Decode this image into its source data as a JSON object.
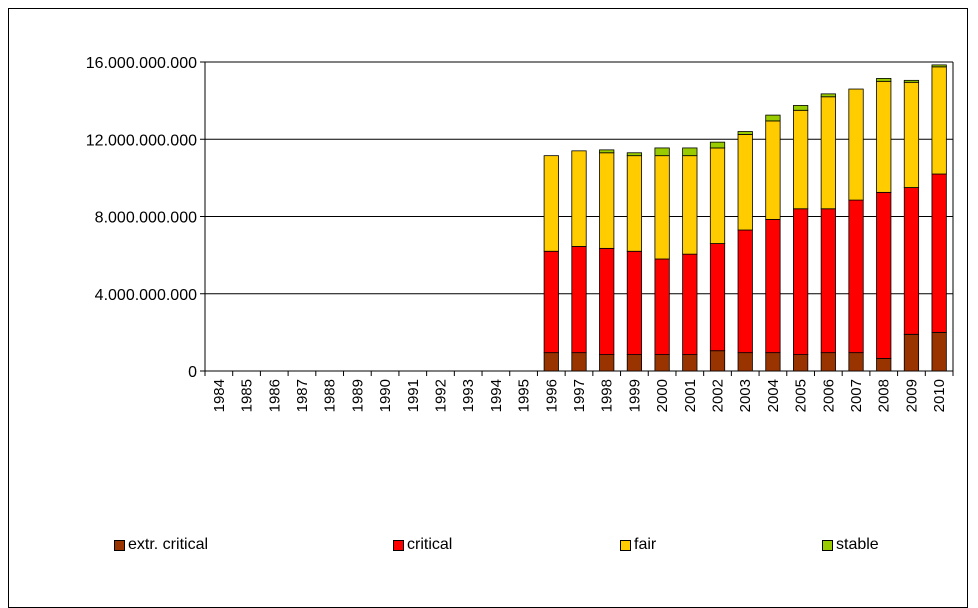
{
  "chart_data": {
    "type": "bar",
    "stacked": true,
    "categories": [
      "1984",
      "1985",
      "1986",
      "1987",
      "1988",
      "1989",
      "1990",
      "1991",
      "1992",
      "1993",
      "1994",
      "1995",
      "1996",
      "1997",
      "1998",
      "1999",
      "2000",
      "2001",
      "2002",
      "2003",
      "2004",
      "2005",
      "2006",
      "2007",
      "2008",
      "2009",
      "2010"
    ],
    "series": [
      {
        "name": "extr. critical",
        "color": "#993300",
        "values": [
          0,
          0,
          0,
          0,
          0,
          0,
          0,
          0,
          0,
          0,
          0,
          0,
          950000000,
          950000000,
          850000000,
          850000000,
          850000000,
          850000000,
          1050000000,
          950000000,
          950000000,
          850000000,
          950000000,
          950000000,
          650000000,
          1900000000,
          2000000000
        ]
      },
      {
        "name": "critical",
        "color": "#ff0000",
        "values": [
          0,
          0,
          0,
          0,
          0,
          0,
          0,
          0,
          0,
          0,
          0,
          0,
          5250000000,
          5500000000,
          5500000000,
          5350000000,
          4950000000,
          5200000000,
          5550000000,
          6350000000,
          6900000000,
          7550000000,
          7450000000,
          7900000000,
          8600000000,
          7600000000,
          8200000000
        ]
      },
      {
        "name": "fair",
        "color": "#ffcc00",
        "values": [
          0,
          0,
          0,
          0,
          0,
          0,
          0,
          0,
          0,
          0,
          0,
          0,
          4950000000,
          4950000000,
          4950000000,
          4950000000,
          5350000000,
          5100000000,
          4950000000,
          4950000000,
          5100000000,
          5100000000,
          5800000000,
          5750000000,
          5750000000,
          5450000000,
          5550000000
        ]
      },
      {
        "name": "stable",
        "color": "#99cc00",
        "values": [
          0,
          0,
          0,
          0,
          0,
          0,
          0,
          0,
          0,
          0,
          0,
          0,
          0,
          0,
          150000000,
          150000000,
          400000000,
          400000000,
          300000000,
          150000000,
          300000000,
          250000000,
          150000000,
          0,
          150000000,
          100000000,
          100000000
        ]
      }
    ],
    "y_ticks": [
      "0",
      "4.000.000.000",
      "8.000.000.000",
      "12.000.000.000",
      "16.000.000.000"
    ],
    "y_tick_values": [
      0,
      4000000000,
      8000000000,
      12000000000,
      16000000000
    ],
    "ylim": [
      0,
      16000000000
    ],
    "grid": "horizontal",
    "legend_position": "bottom"
  }
}
